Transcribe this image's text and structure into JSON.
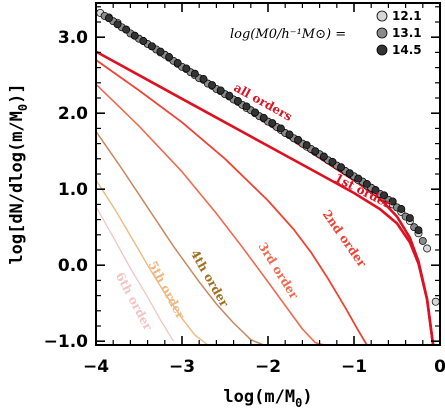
{
  "chart_data": {
    "type": "line",
    "xlabel": "log(m/M",
    "xlabel_sub": "0",
    "xlabel_tail": ")",
    "ylabel": "log[dN/dlog(m/M",
    "ylabel_sub": "0",
    "ylabel_tail": ")]",
    "xlim": [
      -4,
      0
    ],
    "ylim": [
      -1.05,
      3.45
    ],
    "x_ticks": [
      -4,
      -3,
      -2,
      -1,
      0
    ],
    "x_tick_labels": [
      "−4",
      "−3",
      "−2",
      "−1",
      "0"
    ],
    "y_ticks": [
      -1.0,
      0.0,
      1.0,
      2.0,
      3.0
    ],
    "y_tick_labels": [
      "−1.0",
      "0.0",
      "1.0",
      "2.0",
      "3.0"
    ],
    "grid": false,
    "legend_placement": "top-right",
    "legend_title": "log(M0/h⁻¹M⊙) =",
    "lines": [
      {
        "name": "all orders",
        "color": "#dd1122",
        "width": 2.6,
        "x": [
          -4.0,
          -3.5,
          -3.0,
          -2.5,
          -2.0,
          -1.5,
          -1.0,
          -0.7,
          -0.5,
          -0.35,
          -0.25,
          -0.15,
          -0.08
        ],
        "y": [
          3.35,
          2.98,
          2.6,
          2.23,
          1.86,
          1.49,
          1.12,
          0.88,
          0.64,
          0.36,
          0.05,
          -0.45,
          -1.05
        ]
      },
      {
        "name": "1st order",
        "color": "#dd1122",
        "width": 2.6,
        "x": [
          -4.0,
          -3.5,
          -3.0,
          -2.5,
          -2.0,
          -1.5,
          -1.0,
          -0.7,
          -0.5,
          -0.35,
          -0.25,
          -0.15,
          -0.08
        ],
        "y": [
          2.81,
          2.5,
          2.19,
          1.88,
          1.57,
          1.26,
          0.95,
          0.74,
          0.55,
          0.3,
          0.02,
          -0.45,
          -1.05
        ]
      },
      {
        "name": "2nd order",
        "color": "#ee4433",
        "width": 1.8,
        "x": [
          -4.0,
          -3.5,
          -3.0,
          -2.5,
          -2.0,
          -1.7,
          -1.5,
          -1.3,
          -1.1,
          -0.95,
          -0.85
        ],
        "y": [
          2.7,
          2.3,
          1.88,
          1.4,
          0.85,
          0.47,
          0.17,
          -0.18,
          -0.56,
          -0.86,
          -1.05
        ]
      },
      {
        "name": "3rd order",
        "color": "#f06a50",
        "width": 1.6,
        "x": [
          -4.0,
          -3.5,
          -3.0,
          -2.6,
          -2.3,
          -2.0,
          -1.8,
          -1.6,
          -1.45,
          -1.35
        ],
        "y": [
          2.38,
          1.83,
          1.23,
          0.68,
          0.24,
          -0.22,
          -0.53,
          -0.84,
          -1.02,
          -1.05
        ]
      },
      {
        "name": "4th order",
        "color": "#c88860",
        "width": 1.5,
        "x": [
          -4.0,
          -3.7,
          -3.4,
          -3.1,
          -2.8,
          -2.6,
          -2.4,
          -2.2,
          -2.05
        ],
        "y": [
          1.76,
          1.27,
          0.76,
          0.25,
          -0.22,
          -0.51,
          -0.76,
          -0.98,
          -1.05
        ]
      },
      {
        "name": "5th order",
        "color": "#f0b880",
        "width": 1.4,
        "x": [
          -4.0,
          -3.8,
          -3.6,
          -3.4,
          -3.2,
          -3.0,
          -2.85,
          -2.7
        ],
        "y": [
          1.12,
          0.77,
          0.39,
          0.0,
          -0.37,
          -0.7,
          -0.92,
          -1.05
        ]
      },
      {
        "name": "6th order",
        "color": "#f4c4c4",
        "width": 1.3,
        "x": [
          -4.0,
          -3.8,
          -3.6,
          -3.4,
          -3.25,
          -3.1
        ],
        "y": [
          0.77,
          0.37,
          -0.04,
          -0.42,
          -0.72,
          -1.0
        ]
      }
    ],
    "scatter_series": [
      {
        "name": "12.1",
        "color": "#d6d6d6",
        "x": [
          -3.95,
          -3.85,
          -3.75,
          -3.65,
          -3.55,
          -3.45,
          -3.35,
          -3.25,
          -3.15,
          -3.05,
          -2.95,
          -2.85,
          -2.75,
          -2.65,
          -2.55,
          -2.45,
          -2.35,
          -2.25,
          -2.15,
          -2.05,
          -1.95,
          -1.85,
          -1.75,
          -1.65,
          -1.55,
          -1.45,
          -1.35,
          -1.25,
          -1.15,
          -1.05,
          -0.95,
          -0.85,
          -0.75,
          -0.65,
          -0.55,
          -0.45,
          -0.35,
          -0.25,
          -0.15,
          -0.05
        ],
        "y": [
          3.32,
          3.26,
          3.19,
          3.1,
          3.02,
          2.95,
          2.88,
          2.8,
          2.73,
          2.65,
          2.58,
          2.5,
          2.44,
          2.36,
          2.29,
          2.22,
          2.15,
          2.07,
          2.0,
          1.93,
          1.86,
          1.78,
          1.71,
          1.64,
          1.56,
          1.49,
          1.42,
          1.35,
          1.28,
          1.2,
          1.12,
          1.05,
          0.97,
          0.89,
          0.8,
          0.7,
          0.58,
          0.42,
          0.22,
          -0.48
        ]
      },
      {
        "name": "13.1",
        "color": "#8a8a8a",
        "x": [
          -3.9,
          -3.8,
          -3.7,
          -3.6,
          -3.5,
          -3.4,
          -3.3,
          -3.2,
          -3.1,
          -3.0,
          -2.9,
          -2.8,
          -2.7,
          -2.6,
          -2.5,
          -2.4,
          -2.3,
          -2.2,
          -2.1,
          -2.0,
          -1.9,
          -1.8,
          -1.7,
          -1.6,
          -1.5,
          -1.4,
          -1.3,
          -1.2,
          -1.1,
          -1.0,
          -0.9,
          -0.8,
          -0.7,
          -0.6,
          -0.5,
          -0.4,
          -0.3,
          -0.2
        ],
        "y": [
          3.28,
          3.21,
          3.13,
          3.05,
          2.98,
          2.91,
          2.84,
          2.77,
          2.69,
          2.61,
          2.54,
          2.46,
          2.39,
          2.32,
          2.25,
          2.18,
          2.11,
          2.04,
          1.96,
          1.89,
          1.82,
          1.74,
          1.67,
          1.6,
          1.53,
          1.46,
          1.38,
          1.31,
          1.24,
          1.17,
          1.1,
          1.02,
          0.94,
          0.86,
          0.76,
          0.64,
          0.5,
          0.32
        ]
      },
      {
        "name": "14.5",
        "color": "#333333",
        "x": [
          -3.85,
          -3.75,
          -3.65,
          -3.55,
          -3.45,
          -3.35,
          -3.25,
          -3.15,
          -3.05,
          -2.95,
          -2.85,
          -2.75,
          -2.65,
          -2.55,
          -2.45,
          -2.35,
          -2.25,
          -2.15,
          -2.05,
          -1.95,
          -1.85,
          -1.75,
          -1.65,
          -1.55,
          -1.45,
          -1.35,
          -1.25,
          -1.15,
          -1.05,
          -0.95,
          -0.85,
          -0.75,
          -0.65,
          -0.55,
          -0.45,
          -0.35,
          -0.25
        ],
        "y": [
          3.25,
          3.17,
          3.1,
          3.02,
          2.95,
          2.88,
          2.81,
          2.74,
          2.66,
          2.59,
          2.52,
          2.45,
          2.37,
          2.3,
          2.23,
          2.16,
          2.09,
          2.01,
          1.94,
          1.87,
          1.8,
          1.72,
          1.65,
          1.58,
          1.5,
          1.43,
          1.36,
          1.29,
          1.21,
          1.14,
          1.07,
          0.99,
          0.92,
          0.84,
          0.74,
          0.62,
          0.46
        ]
      }
    ],
    "annotations": [
      {
        "text": "all orders",
        "x": -2.08,
        "y": 2.1,
        "angle": 29,
        "color": "#dd1122"
      },
      {
        "text": "1st order",
        "x": -0.92,
        "y": 0.93,
        "angle": 27,
        "color": "#dd1122"
      },
      {
        "text": "2nd order",
        "x": -1.15,
        "y": 0.32,
        "angle": 55,
        "color": "#ee4433"
      },
      {
        "text": "3rd order",
        "x": -1.92,
        "y": -0.1,
        "angle": 58,
        "color": "#f06a50"
      },
      {
        "text": "4th order",
        "x": -2.72,
        "y": -0.2,
        "angle": 60,
        "color": "#a07020"
      },
      {
        "text": "5th order",
        "x": -3.22,
        "y": -0.35,
        "angle": 62,
        "color": "#f0b880"
      },
      {
        "text": "6th order",
        "x": -3.6,
        "y": -0.5,
        "angle": 62,
        "color": "#f4c4c4"
      }
    ]
  }
}
